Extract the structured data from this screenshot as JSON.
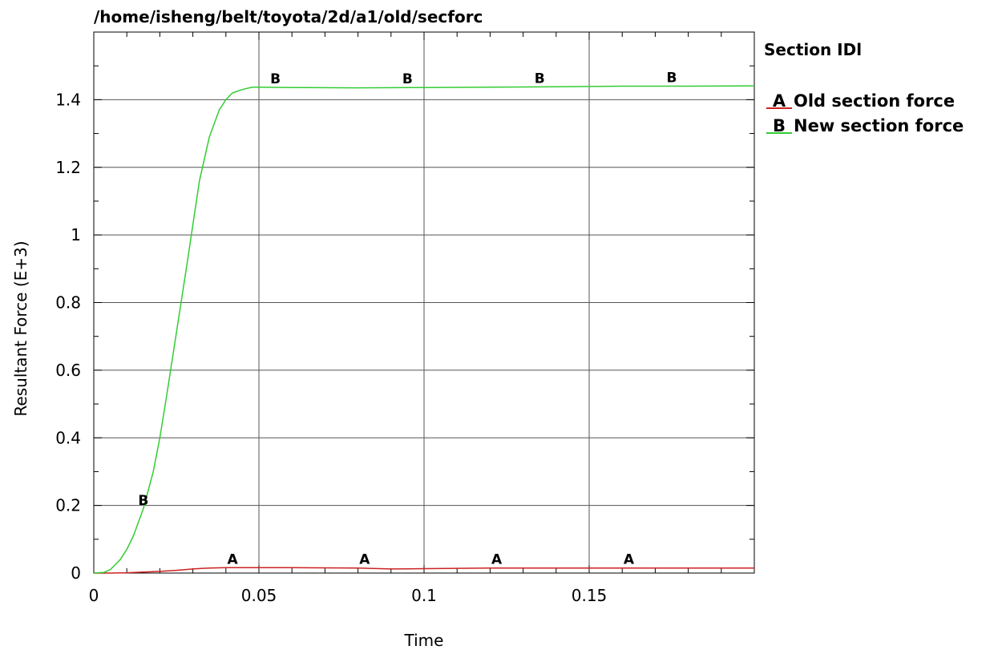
{
  "chart_data": {
    "type": "line",
    "title": "/home/isheng/belt/toyota/2d/a1/old/secforc",
    "xlabel": "Time",
    "ylabel": "Resultant Force (E+3)",
    "xlim": [
      0,
      0.2
    ],
    "ylim": [
      0,
      1.6
    ],
    "x_ticks": [
      0,
      0.05,
      0.1,
      0.15
    ],
    "x_tick_labels": [
      "0",
      "0.05",
      "0.1",
      "0.15"
    ],
    "y_ticks": [
      0,
      0.2,
      0.4,
      0.6,
      0.8,
      1.0,
      1.2,
      1.4
    ],
    "y_tick_labels": [
      "0",
      "0.2",
      "0.4",
      "0.6",
      "0.8",
      "1",
      "1.2",
      "1.4"
    ],
    "grid": true,
    "legend": {
      "title": "Section IDl",
      "placement": "right"
    },
    "series": [
      {
        "id": "A",
        "name": "Old section force",
        "color": "#cc2222",
        "x": [
          0,
          0.005,
          0.01,
          0.015,
          0.02,
          0.025,
          0.03,
          0.035,
          0.04,
          0.045,
          0.05,
          0.06,
          0.08,
          0.09,
          0.1,
          0.12,
          0.15,
          0.2
        ],
        "y": [
          0,
          0,
          0.001,
          0.003,
          0.005,
          0.008,
          0.012,
          0.015,
          0.016,
          0.016,
          0.016,
          0.016,
          0.015,
          0.012,
          0.013,
          0.015,
          0.015,
          0.015
        ],
        "markers": [
          {
            "label": "A",
            "x": 0.042,
            "y": 0.016
          },
          {
            "label": "A",
            "x": 0.082,
            "y": 0.015
          },
          {
            "label": "A",
            "x": 0.122,
            "y": 0.015
          },
          {
            "label": "A",
            "x": 0.162,
            "y": 0.015
          }
        ]
      },
      {
        "id": "B",
        "name": "New section force",
        "color": "#33cc33",
        "x": [
          0,
          0.003,
          0.005,
          0.008,
          0.01,
          0.012,
          0.015,
          0.018,
          0.02,
          0.022,
          0.025,
          0.028,
          0.03,
          0.032,
          0.035,
          0.038,
          0.04,
          0.042,
          0.045,
          0.048,
          0.05,
          0.06,
          0.08,
          0.1,
          0.12,
          0.14,
          0.16,
          0.18,
          0.2
        ],
        "y": [
          0,
          0.002,
          0.01,
          0.04,
          0.07,
          0.11,
          0.19,
          0.3,
          0.4,
          0.52,
          0.71,
          0.9,
          1.03,
          1.16,
          1.29,
          1.37,
          1.4,
          1.42,
          1.43,
          1.437,
          1.437,
          1.436,
          1.435,
          1.436,
          1.437,
          1.438,
          1.44,
          1.44,
          1.441
        ],
        "markers": [
          {
            "label": "B",
            "x": 0.015,
            "y": 0.19
          },
          {
            "label": "B",
            "x": 0.055,
            "y": 1.437
          },
          {
            "label": "B",
            "x": 0.095,
            "y": 1.436
          },
          {
            "label": "B",
            "x": 0.135,
            "y": 1.438
          },
          {
            "label": "B",
            "x": 0.175,
            "y": 1.44
          }
        ]
      }
    ]
  }
}
